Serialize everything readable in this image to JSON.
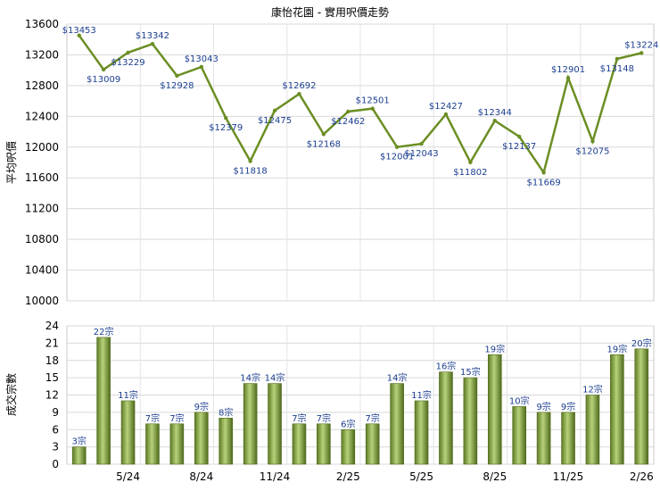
{
  "chart_data": [
    {
      "type": "line",
      "title": "康怡花園 - 實用呎價走勢",
      "ylabel": "平均呎價",
      "ylim": [
        10000,
        13600
      ],
      "yticks": [
        10000,
        10400,
        10800,
        11200,
        11600,
        12000,
        12400,
        12800,
        13200,
        13600
      ],
      "grid": true,
      "color": "#6b8e23",
      "values": [
        13453,
        13009,
        13229,
        13342,
        12928,
        13043,
        12379,
        11818,
        12475,
        12692,
        12168,
        12462,
        12501,
        12001,
        12043,
        12427,
        11802,
        12344,
        12137,
        11669,
        12901,
        12075,
        13148,
        13224
      ],
      "labels": [
        "$13453",
        "$13009",
        "$13229",
        "$13342",
        "$12928",
        "$13043",
        "$12379",
        "$11818",
        "$12475",
        "$12692",
        "$12168",
        "$12462",
        "$12501",
        "$12001",
        "$12043",
        "$12427",
        "$11802",
        "$12344",
        "$12137",
        "$11669",
        "$12901",
        "$12075",
        "$13148",
        "$13224"
      ]
    },
    {
      "type": "bar",
      "ylabel": "成交宗數",
      "ylim": [
        0,
        24
      ],
      "yticks": [
        0,
        3,
        6,
        9,
        12,
        15,
        18,
        21,
        24
      ],
      "grid": true,
      "color": "#7a9a3a",
      "values": [
        3,
        22,
        11,
        7,
        7,
        9,
        8,
        14,
        14,
        7,
        7,
        6,
        7,
        14,
        11,
        16,
        15,
        19,
        10,
        9,
        9,
        12,
        19,
        20
      ],
      "labels": [
        "3宗",
        "22宗",
        "11宗",
        "7宗",
        "7宗",
        "9宗",
        "8宗",
        "14宗",
        "14宗",
        "7宗",
        "7宗",
        "6宗",
        "7宗",
        "14宗",
        "11宗",
        "16宗",
        "15宗",
        "19宗",
        "10宗",
        "9宗",
        "9宗",
        "12宗",
        "19宗",
        "20宗"
      ],
      "xtick_labels": [
        "5/24",
        "8/24",
        "11/24",
        "2/25",
        "5/25",
        "8/25",
        "11/25",
        "2/26"
      ],
      "xtick_index": [
        2,
        5,
        8,
        11,
        14,
        17,
        20,
        23
      ]
    }
  ]
}
